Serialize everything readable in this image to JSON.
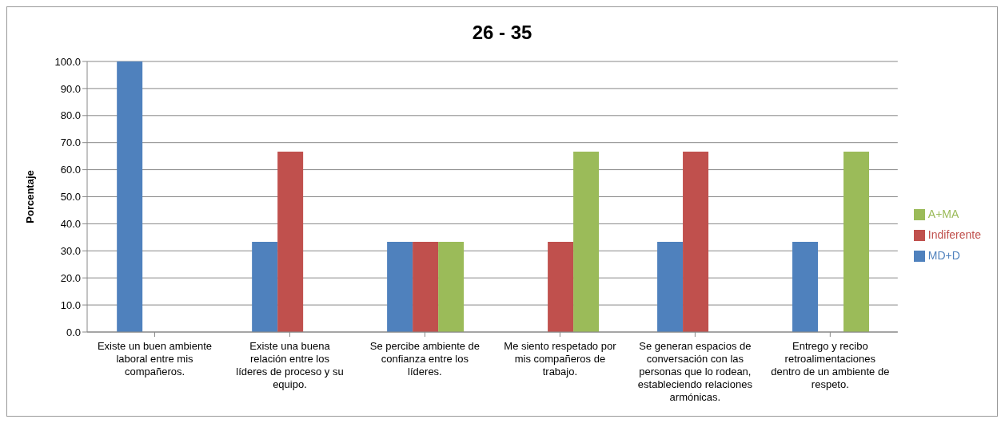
{
  "chart_data": {
    "type": "bar",
    "title": "26 - 35",
    "ylabel": "Porcentaje",
    "categories": [
      "Existe un buen ambiente laboral entre mis compañeros.",
      "Existe una buena relación entre los líderes de proceso y su equipo.",
      "Se percibe ambiente de confianza entre los líderes.",
      "Me siento respetado por mis compañeros de trabajo.",
      "Se generan espacios de conversación con las personas que lo rodean, estableciendo relaciones armónicas.",
      "Entrego y recibo retroalimentaciones dentro de un ambiente de respeto."
    ],
    "series": [
      {
        "name": "MD+D",
        "color": "#4f81bd",
        "values": [
          100,
          33.3,
          33.3,
          0,
          33.3,
          33.3
        ]
      },
      {
        "name": "Indiferente",
        "color": "#c0504d",
        "values": [
          0,
          66.7,
          33.3,
          33.3,
          66.7,
          0
        ]
      },
      {
        "name": "A+MA",
        "color": "#9bbb59",
        "values": [
          0,
          0,
          33.3,
          66.7,
          0,
          66.7
        ]
      }
    ],
    "ylim": [
      0,
      100
    ],
    "yticks": [
      {
        "value": 0,
        "label": "0.0"
      },
      {
        "value": 10,
        "label": "10.0"
      },
      {
        "value": 20,
        "label": "20.0"
      },
      {
        "value": 30,
        "label": "30.0"
      },
      {
        "value": 40,
        "label": "40.0"
      },
      {
        "value": 50,
        "label": "50.0"
      },
      {
        "value": 60,
        "label": "60.0"
      },
      {
        "value": 70,
        "label": "70.0"
      },
      {
        "value": 80,
        "label": "80.0"
      },
      {
        "value": 90,
        "label": "90.0"
      },
      {
        "value": 100,
        "label": "100.0"
      }
    ],
    "grid": "y",
    "legend": "right"
  }
}
